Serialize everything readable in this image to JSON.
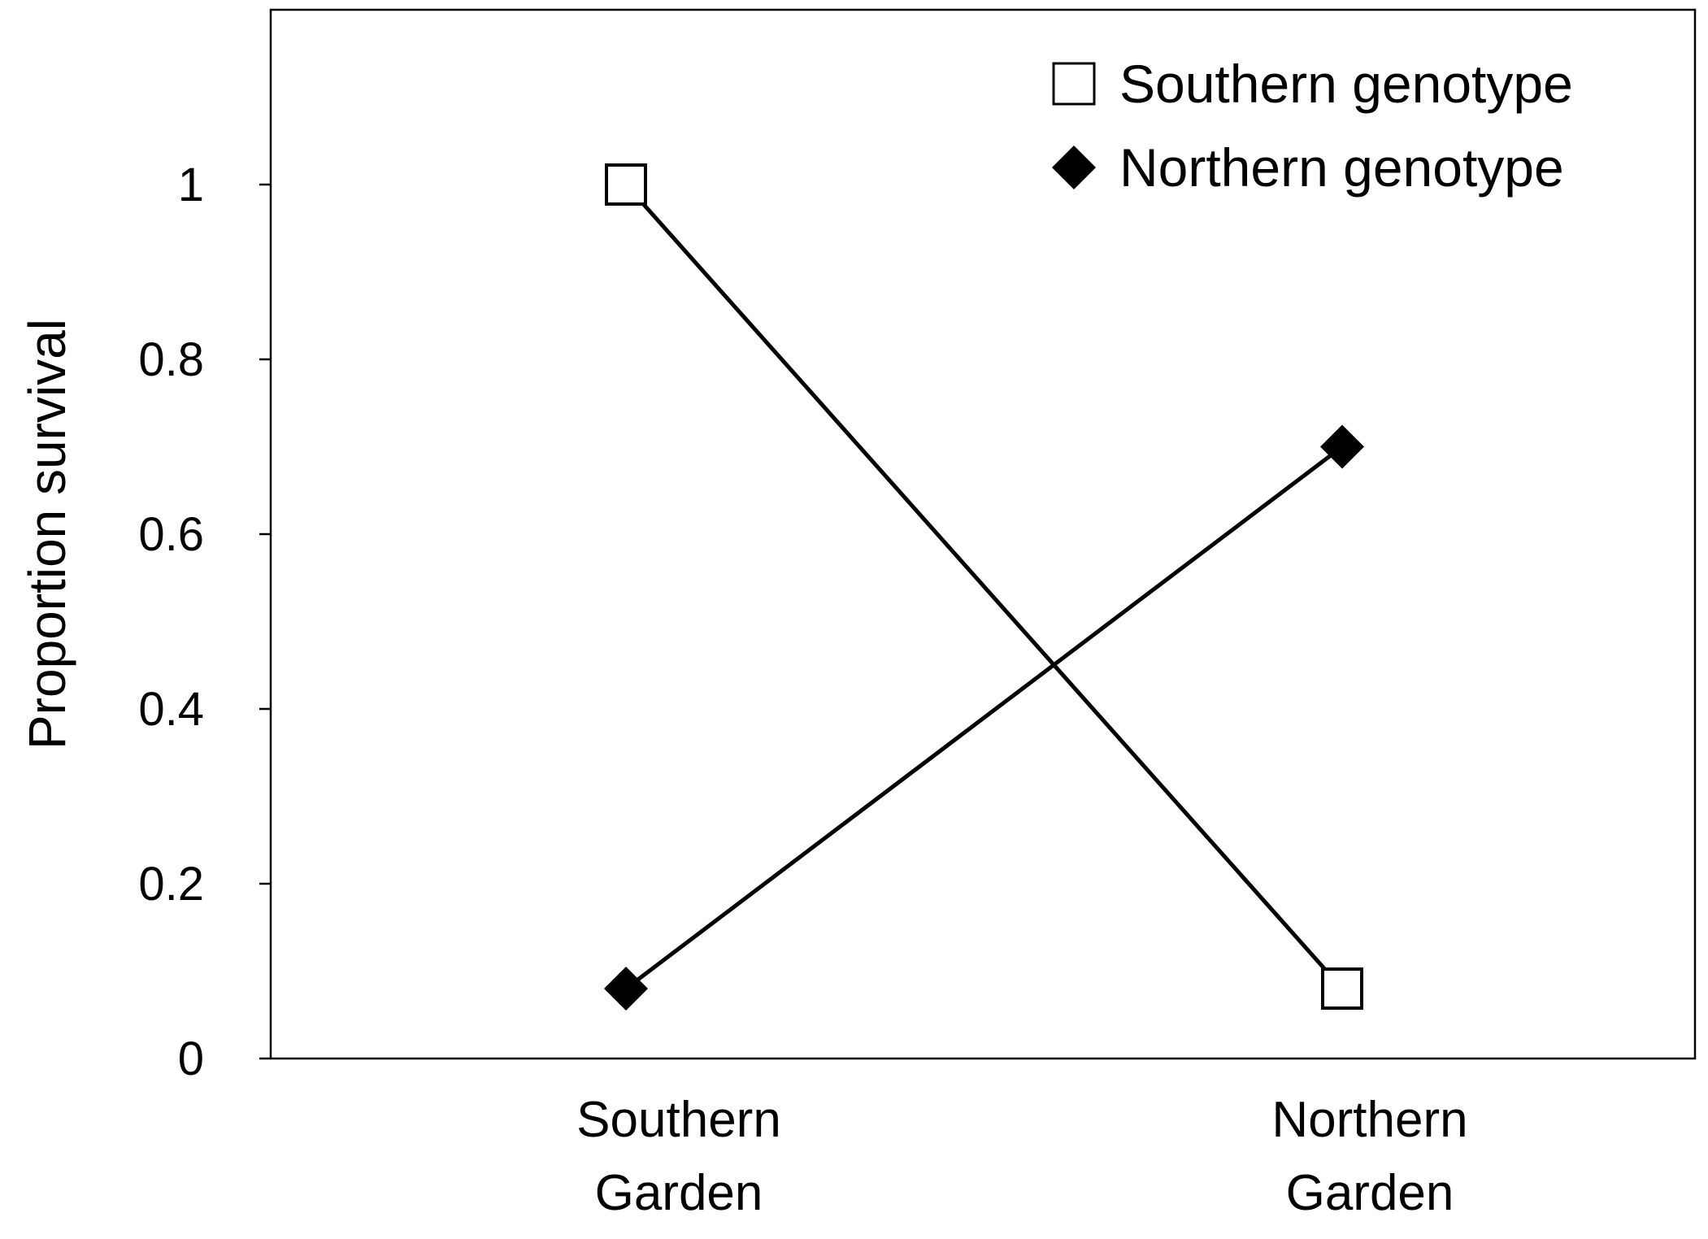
{
  "chart_data": {
    "type": "line",
    "title": "",
    "xlabel": "",
    "ylabel": "Proportion survival",
    "categories": [
      [
        "Southern",
        "Garden"
      ],
      [
        "Northern",
        "Garden"
      ]
    ],
    "ylim": [
      0,
      1.2
    ],
    "yticks": [
      0,
      0.2,
      0.4,
      0.6,
      0.8,
      1
    ],
    "ytick_labels": [
      "0",
      "0.2",
      "0.4",
      "0.6",
      "0.8",
      "1"
    ],
    "grid": false,
    "legend_position": "top-right",
    "series": [
      {
        "name": "Southern genotype",
        "marker": "square-open",
        "color": "#000000",
        "values": [
          1.0,
          0.08
        ]
      },
      {
        "name": "Northern genotype",
        "marker": "diamond-filled",
        "color": "#000000",
        "values": [
          0.08,
          0.7
        ]
      }
    ]
  }
}
